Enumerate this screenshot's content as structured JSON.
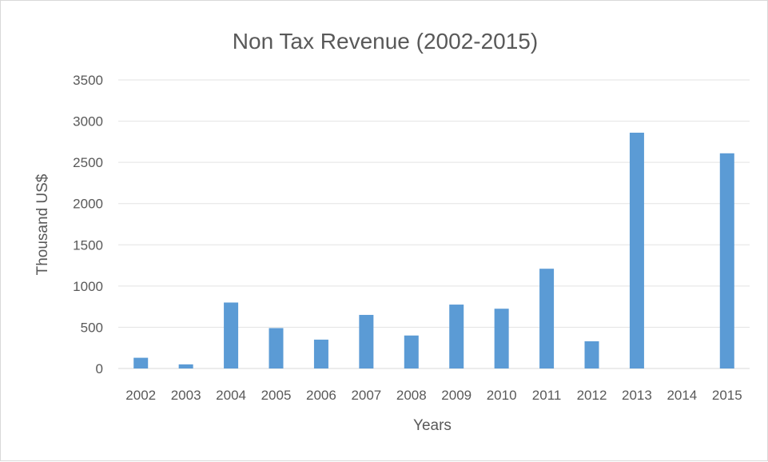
{
  "chart_data": {
    "type": "bar",
    "title": "Non Tax Revenue (2002-2015)",
    "xlabel": "Years",
    "ylabel": "Thousand US$",
    "categories": [
      "2002",
      "2003",
      "2004",
      "2005",
      "2006",
      "2007",
      "2008",
      "2009",
      "2010",
      "2011",
      "2012",
      "2013",
      "2014",
      "2015"
    ],
    "values": [
      130,
      50,
      800,
      490,
      350,
      650,
      400,
      775,
      725,
      1210,
      330,
      2860,
      0,
      2610
    ],
    "ylim": [
      0,
      3500
    ],
    "yticks": [
      "0",
      "500",
      "1000",
      "1500",
      "2000",
      "2500",
      "3000",
      "3500"
    ],
    "grid": true,
    "legend": "none",
    "bar_color": "#5b9bd5"
  }
}
